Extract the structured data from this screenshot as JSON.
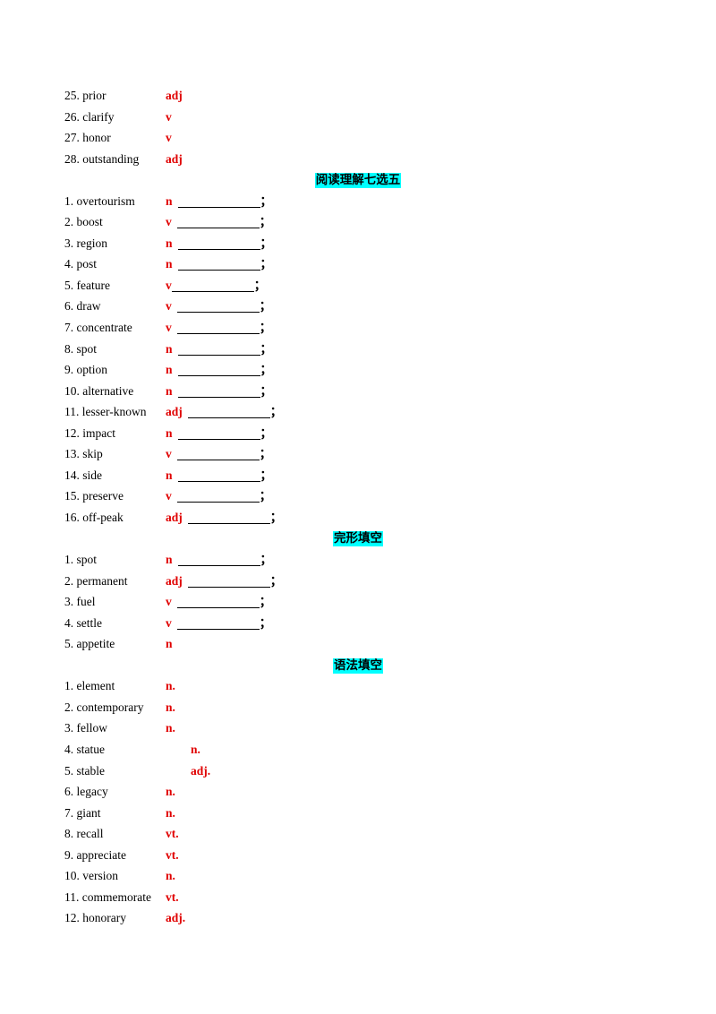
{
  "section0": {
    "items": [
      {
        "word": "25. prior",
        "pos": "adj"
      },
      {
        "word": "26. clarify",
        "pos": "v"
      },
      {
        "word": "27. honor",
        "pos": "v"
      },
      {
        "word": "28.  outstanding",
        "pos": "adj"
      }
    ]
  },
  "section1": {
    "heading": "阅读理解七选五",
    "items": [
      {
        "word": "1. overtourism",
        "pos": "n",
        "semi": "；"
      },
      {
        "word": "2. boost",
        "pos": "v",
        "semi": "；"
      },
      {
        "word": "3. region",
        "pos": "n",
        "semi": "；"
      },
      {
        "word": "4. post",
        "pos": "n",
        "semi": "；"
      },
      {
        "word": "5. feature",
        "pos": "v",
        "semi": "；"
      },
      {
        "word": "6. draw",
        "pos": "v",
        "semi": "；"
      },
      {
        "word": "7. concentrate",
        "pos": "v",
        "semi": "；"
      },
      {
        "word": "8. spot",
        "pos": "n",
        "semi": "；"
      },
      {
        "word": "9. option",
        "pos": "n",
        "semi": "；"
      },
      {
        "word": "10. alternative",
        "pos": "n",
        "semi": "；"
      },
      {
        "word": "11. lesser-known",
        "pos": "adj",
        "semi": "；"
      },
      {
        "word": "12. impact",
        "pos": "n",
        "semi": "；"
      },
      {
        "word": "13. skip",
        "pos": "v",
        "semi": "；"
      },
      {
        "word": "14. side",
        "pos": "n",
        "semi": "；"
      },
      {
        "word": "15. preserve",
        "pos": "v",
        "semi": "；"
      },
      {
        "word": "16. off-peak",
        "pos": "adj",
        "semi": "；"
      }
    ]
  },
  "section2": {
    "heading": "完形填空",
    "items": [
      {
        "word": "1.  spot",
        "pos": "n",
        "semi": "；"
      },
      {
        "word": "2.  permanent",
        "pos": "adj",
        "semi": "；"
      },
      {
        "word": "3.  fuel",
        "pos": "v",
        "semi": "；"
      },
      {
        "word": "4.  settle",
        "pos": "v",
        "semi": "；"
      },
      {
        "word": "5.  appetite",
        "pos": "n"
      }
    ]
  },
  "section3": {
    "heading": "语法填空",
    "items": [
      {
        "word": "1.  element",
        "pos": "n."
      },
      {
        "word": "2.  contemporary",
        "pos": "n."
      },
      {
        "word": "3.  fellow",
        "pos": "n."
      },
      {
        "word": "4.  statue",
        "pos": "n."
      },
      {
        "word": "5.  stable",
        "pos": "adj."
      },
      {
        "word": "6.  legacy",
        "pos": "n."
      },
      {
        "word": "7.  giant",
        "pos": "n."
      },
      {
        "word": "8.  recall",
        "pos": "vt."
      },
      {
        "word": "9.  appreciate",
        "pos": "vt."
      },
      {
        "word": "10.  version",
        "pos": "n."
      },
      {
        "word": "11.  commemorate",
        "pos": "vt."
      },
      {
        "word": "12.  honorary",
        "pos": "adj."
      }
    ]
  },
  "colors": {
    "pos": "#e00000",
    "heading_bg": "#00ffff"
  }
}
